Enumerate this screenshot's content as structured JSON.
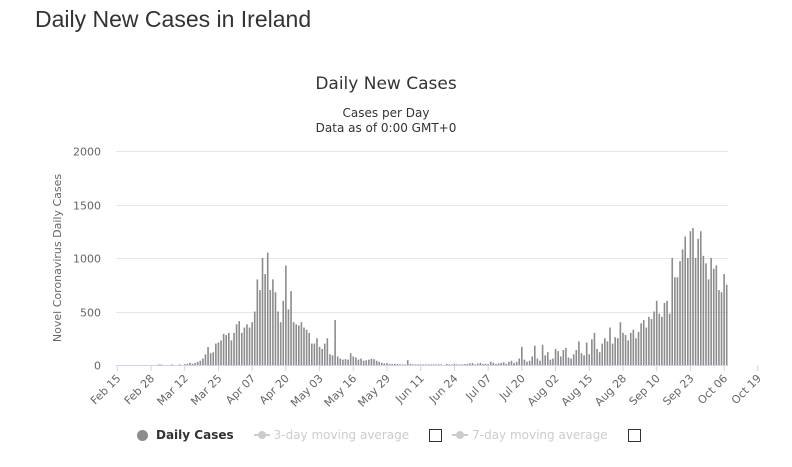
{
  "page": {
    "title": "Daily New Cases in Ireland"
  },
  "legend": {
    "daily": "Daily Cases",
    "ma3": "3-day moving average",
    "ma7": "7-day moving average"
  },
  "chart_data": {
    "type": "bar",
    "title": "Daily New Cases",
    "subtitle_line1": "Cases per Day",
    "subtitle_line2": "Data as of 0:00 GMT+0",
    "ylabel": "Novel Coronavirus Daily Cases",
    "xlabel": "",
    "ylim": [
      0,
      2000
    ],
    "yticks": [
      0,
      500,
      1000,
      1500,
      2000
    ],
    "bar_color": "#8c8c8c",
    "grid": true,
    "x_tick_labels": [
      "Feb 15",
      "Feb 28",
      "Mar 12",
      "Mar 25",
      "Apr 07",
      "Apr 20",
      "May 03",
      "May 16",
      "May 29",
      "Jun 11",
      "Jun 24",
      "Jul 07",
      "Jul 20",
      "Aug 02",
      "Aug 15",
      "Aug 28",
      "Sep 10",
      "Sep 23",
      "Oct 06",
      "Oct 19"
    ],
    "series": [
      {
        "name": "Daily Cases",
        "start_date": "2020-02-15",
        "values": [
          0,
          0,
          0,
          0,
          0,
          0,
          0,
          0,
          0,
          0,
          0,
          0,
          0,
          0,
          0,
          0,
          1,
          1,
          0,
          0,
          0,
          5,
          0,
          0,
          4,
          0,
          8,
          11,
          21,
          12,
          20,
          30,
          40,
          60,
          100,
          168,
          110,
          120,
          200,
          210,
          230,
          290,
          280,
          300,
          230,
          300,
          380,
          410,
          300,
          350,
          380,
          350,
          400,
          500,
          800,
          700,
          1000,
          850,
          1050,
          700,
          800,
          680,
          500,
          400,
          600,
          930,
          520,
          690,
          400,
          380,
          370,
          400,
          350,
          330,
          300,
          200,
          200,
          250,
          170,
          150,
          200,
          250,
          100,
          90,
          420,
          80,
          60,
          50,
          55,
          50,
          110,
          80,
          70,
          50,
          60,
          40,
          45,
          50,
          60,
          55,
          40,
          30,
          20,
          15,
          18,
          10,
          10,
          12,
          8,
          5,
          4,
          2,
          45,
          10,
          6,
          4,
          3,
          2,
          1,
          1,
          1,
          5,
          3,
          2,
          1,
          1,
          0,
          10,
          5,
          3,
          12,
          4,
          5,
          2,
          8,
          10,
          15,
          18,
          5,
          12,
          20,
          10,
          12,
          8,
          30,
          20,
          10,
          15,
          20,
          25,
          12,
          30,
          40,
          20,
          30,
          60,
          170,
          50,
          30,
          40,
          80,
          180,
          60,
          40,
          190,
          90,
          120,
          50,
          60,
          150,
          130,
          80,
          140,
          160,
          70,
          60,
          100,
          140,
          220,
          110,
          90,
          210,
          100,
          240,
          300,
          150,
          120,
          200,
          250,
          220,
          350,
          200,
          260,
          250,
          400,
          300,
          280,
          230,
          300,
          330,
          250,
          310,
          390,
          420,
          350,
          450,
          430,
          500,
          600,
          480,
          450,
          580,
          600,
          480,
          1000,
          820,
          820,
          970,
          1080,
          1200,
          1000,
          1250,
          1280,
          1000,
          1180,
          1250,
          1020,
          950,
          800,
          1000,
          900,
          930,
          700,
          680,
          850,
          750
        ]
      }
    ]
  }
}
